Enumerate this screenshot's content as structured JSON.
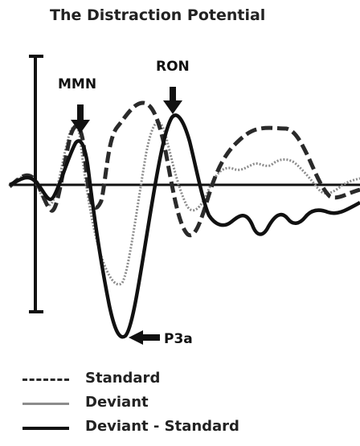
{
  "title": "The Distraction Potential",
  "components": {
    "mmn": "MMN",
    "ron": "RON",
    "p3a": "P3a"
  },
  "legend": [
    {
      "label": "Standard",
      "style": "dashed"
    },
    {
      "label": "Deviant",
      "style": "thin-grey"
    },
    {
      "label": "Deviant - Standard",
      "style": "thick-solid"
    }
  ],
  "colors": {
    "standard": "#2a2a2a",
    "deviant": "#8c8c8c",
    "difference": "#111111"
  }
}
